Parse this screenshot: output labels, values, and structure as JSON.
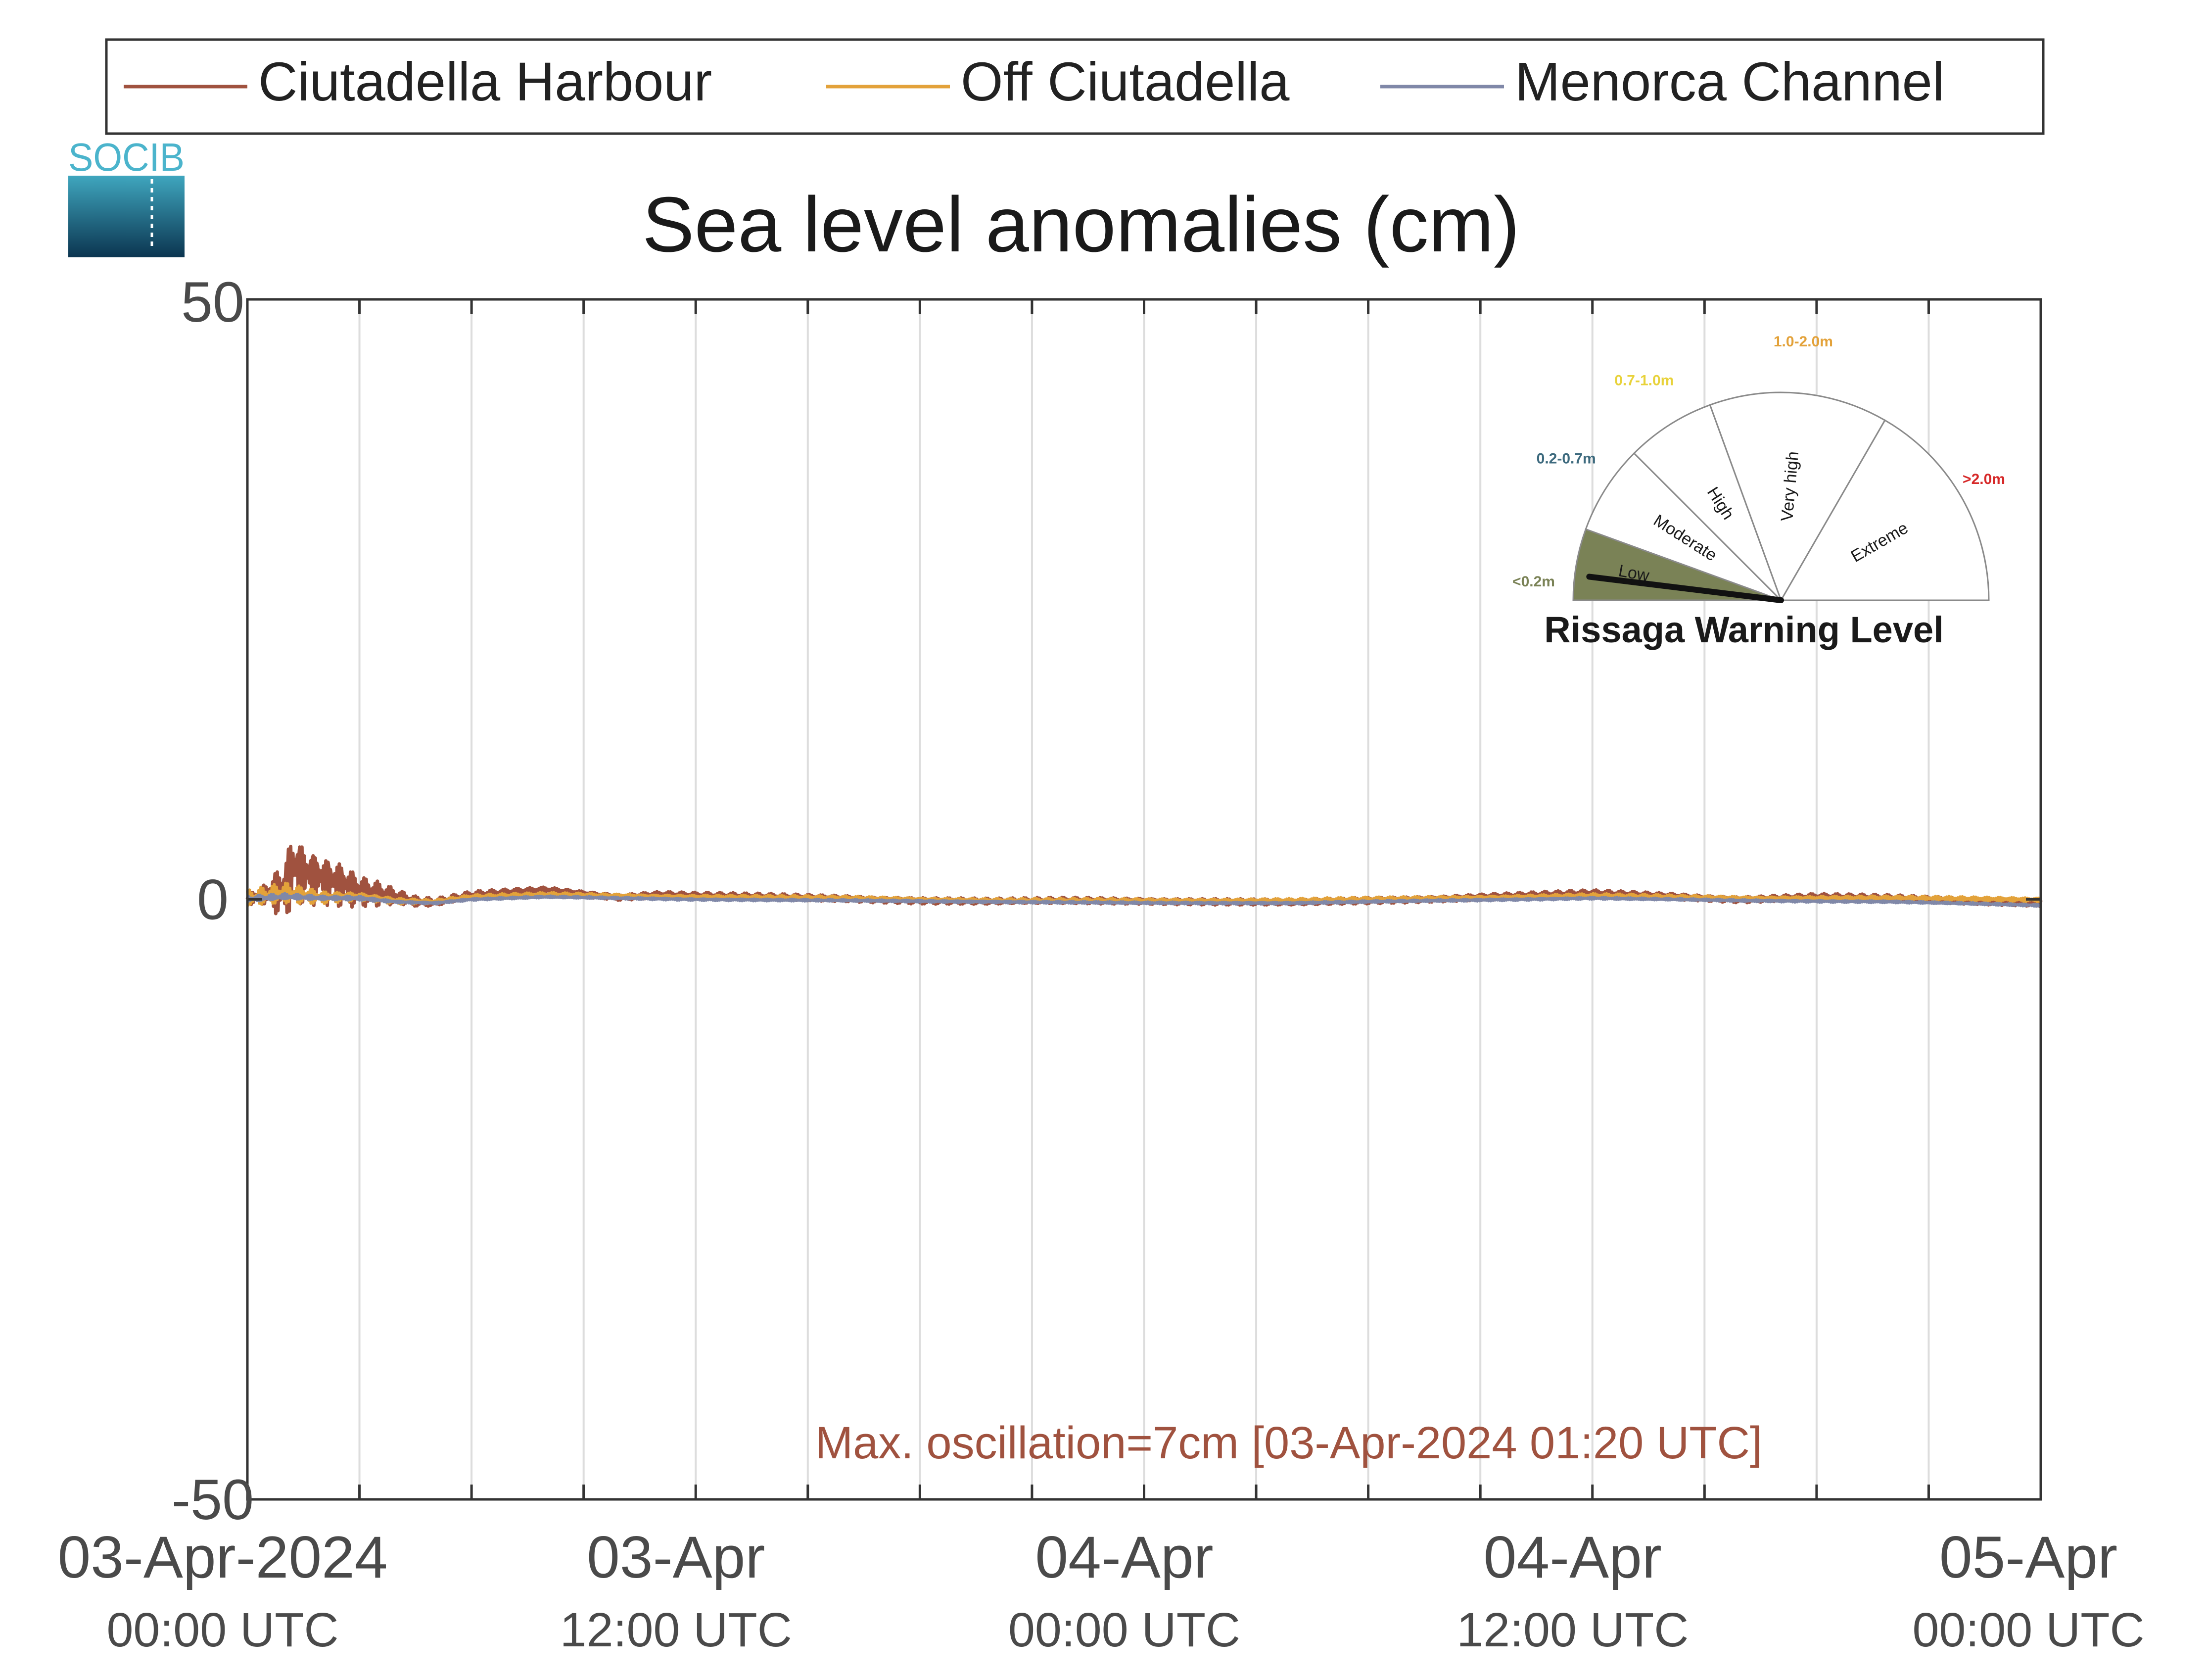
{
  "logo": {
    "text": "SOCIB"
  },
  "legend": {
    "placement": "top",
    "entries": [
      {
        "name": "Ciutadella Harbour",
        "color": "#a0523f"
      },
      {
        "name": "Off Ciutadella",
        "color": "#e3a23a"
      },
      {
        "name": "Menorca Channel",
        "color": "#8088a8"
      }
    ]
  },
  "chart_data": {
    "type": "line",
    "title": "Sea level anomalies (cm)",
    "xlabel": "",
    "ylabel": "",
    "x_unit": "hours since 03-Apr-2024 00:00 UTC",
    "xlim": [
      0,
      48
    ],
    "ylim": [
      -50,
      50
    ],
    "grid": "vertical",
    "x_ticks": [
      {
        "value": 0,
        "label": "03-Apr-2024",
        "sublabel": "00:00 UTC"
      },
      {
        "value": 12,
        "label": "03-Apr",
        "sublabel": "12:00 UTC"
      },
      {
        "value": 24,
        "label": "04-Apr",
        "sublabel": "00:00 UTC"
      },
      {
        "value": 36,
        "label": "04-Apr",
        "sublabel": "12:00 UTC"
      },
      {
        "value": 48,
        "label": "05-Apr",
        "sublabel": "00:00 UTC"
      }
    ],
    "x_gridlines": [
      3,
      6,
      9,
      12,
      15,
      18,
      21,
      24,
      27,
      30,
      33,
      36,
      39,
      42,
      45
    ],
    "y_ticks": [
      {
        "value": 50,
        "label": "50"
      },
      {
        "value": 0,
        "label": "0"
      },
      {
        "value": -50,
        "label": "-50"
      }
    ],
    "series": [
      {
        "name": "Ciutadella Harbour",
        "color": "#a0523f",
        "x": [
          0,
          0.5,
          1,
          1.2,
          1.5,
          2,
          2.5,
          3,
          3.5,
          4,
          4.5,
          5,
          5.5,
          6,
          7,
          8,
          9,
          10,
          11,
          12,
          14,
          16,
          18,
          20,
          22,
          24,
          26,
          28,
          30,
          32,
          34,
          36,
          38,
          40,
          42,
          44,
          46,
          48
        ],
        "y": [
          0,
          0.5,
          1.0,
          3.0,
          2.5,
          2.0,
          1.5,
          0.8,
          0.5,
          0.2,
          -0.2,
          -0.3,
          0.0,
          0.3,
          0.6,
          0.8,
          0.5,
          0.2,
          0.4,
          0.3,
          0.2,
          0.1,
          -0.1,
          -0.2,
          -0.1,
          -0.1,
          -0.2,
          -0.3,
          -0.1,
          0.1,
          0.3,
          0.5,
          0.3,
          0.0,
          0.2,
          0.1,
          -0.1,
          -0.3
        ],
        "amplitude": [
          0.5,
          1.0,
          3.0,
          3.5,
          3.0,
          2.5,
          2.2,
          1.5,
          1.2,
          0.7,
          0.5,
          0.4,
          0.4,
          0.4,
          0.3,
          0.3,
          0.3,
          0.3,
          0.3,
          0.3,
          0.3,
          0.3,
          0.3,
          0.3,
          0.3,
          0.3,
          0.3,
          0.3,
          0.3,
          0.3,
          0.3,
          0.3,
          0.3,
          0.3,
          0.3,
          0.3,
          0.3,
          0.3
        ]
      },
      {
        "name": "Off Ciutadella",
        "color": "#e3a23a",
        "x": [
          0,
          1,
          2,
          3,
          4,
          5,
          6,
          8,
          10,
          12,
          16,
          20,
          24,
          28,
          32,
          36,
          40,
          44,
          48
        ],
        "y": [
          0,
          0.5,
          0.2,
          0.3,
          -0.1,
          -0.2,
          0.2,
          0.4,
          0.3,
          0.2,
          0.1,
          -0.1,
          -0.1,
          -0.1,
          0.1,
          0.3,
          0.1,
          0.1,
          0.0
        ],
        "amplitude": [
          0.8,
          1.0,
          0.6,
          0.4,
          0.3,
          0.2,
          0.2,
          0.2,
          0.2,
          0.2,
          0.2,
          0.2,
          0.2,
          0.2,
          0.2,
          0.2,
          0.2,
          0.2,
          0.2
        ]
      },
      {
        "name": "Menorca Channel",
        "color": "#8088a8",
        "x": [
          0,
          1,
          2,
          3,
          4,
          5,
          6,
          8,
          10,
          12,
          16,
          20,
          24,
          28,
          32,
          36,
          40,
          44,
          48
        ],
        "y": [
          0,
          0.2,
          0.1,
          0.1,
          -0.2,
          -0.3,
          0.0,
          0.2,
          0.1,
          0.0,
          -0.1,
          -0.2,
          -0.3,
          -0.3,
          -0.1,
          0.1,
          -0.1,
          -0.2,
          -0.5
        ],
        "amplitude": [
          0.3,
          0.3,
          0.2,
          0.2,
          0.1,
          0.1,
          0.1,
          0.1,
          0.1,
          0.1,
          0.1,
          0.1,
          0.1,
          0.1,
          0.1,
          0.1,
          0.1,
          0.1,
          0.1
        ]
      }
    ],
    "annotation": {
      "text": "Max. oscillation=7cm [03-Apr-2024 01:20 UTC]",
      "color": "#a0523f"
    }
  },
  "gauge": {
    "title": "Rissaga Warning Level",
    "current_level": "Low",
    "segments": [
      {
        "label": "Low",
        "range": "<0.2m",
        "range_color": "#7a8256",
        "fill": "#7a8256"
      },
      {
        "label": "Moderate",
        "range": "0.2-0.7m",
        "range_color": "#3d6a7e",
        "fill": "#ffffff"
      },
      {
        "label": "High",
        "range": "0.7-1.0m",
        "range_color": "#e8d23a",
        "fill": "#ffffff"
      },
      {
        "label": "Very high",
        "range": "1.0-2.0m",
        "range_color": "#e3a23a",
        "fill": "#ffffff"
      },
      {
        "label": "Extreme",
        "range": ">2.0m",
        "range_color": "#d62828",
        "fill": "#ffffff"
      }
    ]
  }
}
